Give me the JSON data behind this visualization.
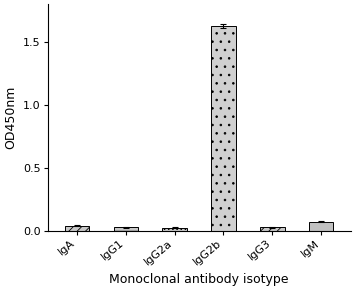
{
  "categories": [
    "IgA",
    "IgG1",
    "IgG2a",
    "IgG2b",
    "IgG3",
    "IgM"
  ],
  "values": [
    0.042,
    0.03,
    0.027,
    1.63,
    0.03,
    0.075
  ],
  "errors": [
    0.004,
    0.003,
    0.002,
    0.018,
    0.003,
    0.005
  ],
  "hatch_list": [
    "////",
    "----",
    "....",
    "..",
    "////",
    ""
  ],
  "face_colors": [
    "#c8c8c8",
    "#c8c8c8",
    "#c8c8c8",
    "#d0d0d0",
    "#c8c8c8",
    "#c0c0c0"
  ],
  "bar_edgecolor": "#000000",
  "ylabel": "OD450nm",
  "xlabel": "Monoclonal antibody isotype",
  "ylim": [
    0,
    1.8
  ],
  "yticks": [
    0.0,
    0.5,
    1.0,
    1.5
  ],
  "bar_width": 0.5,
  "fig_width": 3.55,
  "fig_height": 2.9,
  "dpi": 100
}
